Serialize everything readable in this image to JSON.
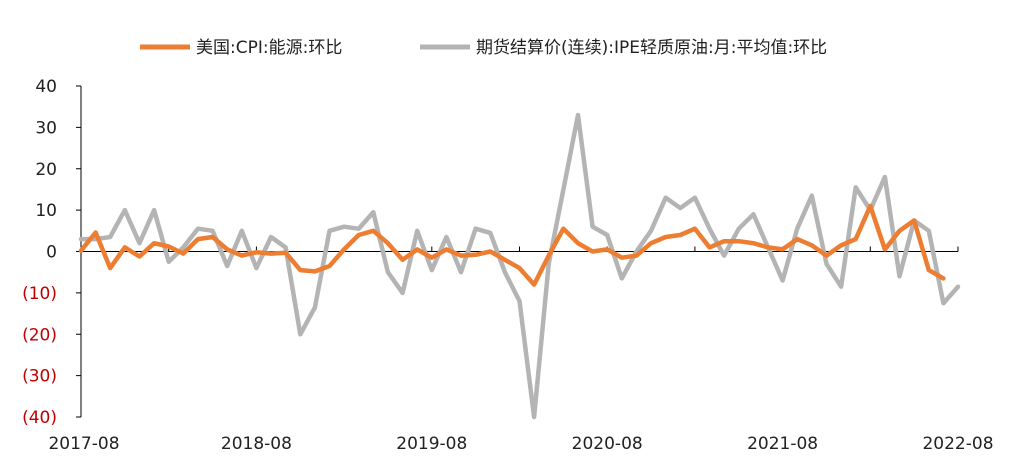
{
  "chart_data": {
    "type": "line",
    "title": "",
    "xlabel": "",
    "ylabel": "",
    "ylim": [
      -40,
      40
    ],
    "y_ticks": [
      "40",
      "30",
      "20",
      "10",
      "0",
      "(10)",
      "(20)",
      "(30)",
      "(40)"
    ],
    "y_tick_values": [
      40,
      30,
      20,
      10,
      0,
      -10,
      -20,
      -30,
      -40
    ],
    "negative_tick_color": "#c00000",
    "x_tick_labels": [
      "2017-08",
      "2018-08",
      "2019-08",
      "2020-08",
      "2021-08",
      "2022-08"
    ],
    "x_tick_month_index": [
      0,
      12,
      24,
      36,
      48,
      60
    ],
    "x_start": "2017-08",
    "x_end": "2022-08",
    "legend_position": "top",
    "grid": false,
    "series": [
      {
        "name": "美国:CPI:能源:环比",
        "color": "#ed7d31",
        "values": [
          0.2,
          4.6,
          -4.0,
          1.0,
          -1.2,
          2.0,
          1.2,
          -0.5,
          3.0,
          3.5,
          0.5,
          -1.0,
          -0.2,
          -0.5,
          -0.3,
          -4.5,
          -4.8,
          -3.5,
          0.5,
          4.0,
          5.0,
          2.0,
          -2.0,
          0.5,
          -1.5,
          0.5,
          -1.0,
          -0.8,
          0.0,
          -2.0,
          -4.0,
          -8.0,
          -1.0,
          5.5,
          2.0,
          0.0,
          0.5,
          -1.5,
          -1.0,
          2.0,
          3.5,
          4.0,
          5.5,
          1.0,
          2.5,
          2.5,
          2.0,
          1.0,
          0.5,
          3.0,
          1.5,
          -1.0,
          1.5,
          3.0,
          11.0,
          0.5,
          5.0,
          7.5,
          -4.5,
          -6.5
        ]
      },
      {
        "name": "期货结算价(连续):IPE轻质原油:月:平均值:环比",
        "color": "#b4b4b4",
        "values": [
          3.0,
          3.0,
          3.5,
          10.0,
          2.0,
          10.0,
          -2.5,
          1.0,
          5.5,
          5.0,
          -3.5,
          5.0,
          -4.0,
          3.5,
          1.0,
          -20.0,
          -13.5,
          5.0,
          6.0,
          5.5,
          9.5,
          -5.0,
          -10.0,
          5.0,
          -4.5,
          3.5,
          -5.0,
          5.5,
          4.5,
          -5.0,
          -12.0,
          -40.0,
          -3.0,
          15.0,
          33.0,
          6.0,
          4.0,
          -6.5,
          0.0,
          5.0,
          13.0,
          10.5,
          13.0,
          5.5,
          -1.0,
          5.5,
          9.0,
          1.0,
          -7.0,
          5.5,
          13.5,
          -3.0,
          -8.5,
          15.5,
          10.0,
          18.0,
          -6.0,
          7.5,
          5.0,
          -12.5,
          -8.5
        ]
      }
    ]
  }
}
